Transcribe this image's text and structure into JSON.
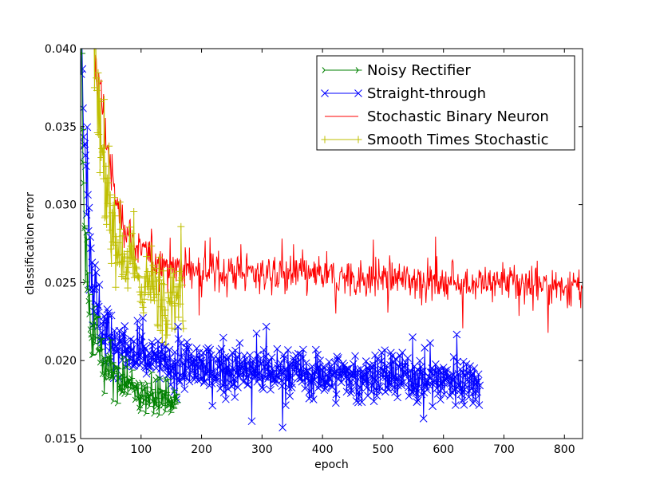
{
  "chart_data": {
    "type": "line",
    "title": "",
    "xlabel": "epoch",
    "ylabel": "classification error",
    "xlim": [
      0,
      830
    ],
    "ylim": [
      0.015,
      0.04
    ],
    "xticks": [
      0,
      100,
      200,
      300,
      400,
      500,
      600,
      700,
      800
    ],
    "yticks": [
      0.015,
      0.02,
      0.025,
      0.03,
      0.035,
      0.04
    ],
    "ytick_labels": [
      "0.015",
      "0.020",
      "0.025",
      "0.030",
      "0.035",
      "0.040"
    ],
    "legend_position": "top-right",
    "series": [
      {
        "name": "Noisy Rectifier",
        "color": "#008000",
        "marker": "tri_right",
        "x": [
          1,
          2,
          4,
          6,
          8,
          10,
          12,
          14,
          16,
          18,
          20,
          25,
          30,
          35,
          40,
          45,
          50,
          55,
          60,
          65,
          70,
          75,
          80,
          85,
          90,
          95,
          100,
          105,
          110,
          115,
          120,
          125,
          130,
          135,
          140,
          145,
          150,
          155,
          160
        ],
        "values": [
          0.04,
          0.036,
          0.032,
          0.03,
          0.028,
          0.026,
          0.025,
          0.024,
          0.023,
          0.0225,
          0.022,
          0.0215,
          0.021,
          0.0205,
          0.02,
          0.0198,
          0.0195,
          0.0192,
          0.019,
          0.0188,
          0.0187,
          0.0185,
          0.0184,
          0.0183,
          0.0182,
          0.0181,
          0.018,
          0.0179,
          0.0178,
          0.0178,
          0.0177,
          0.0177,
          0.0176,
          0.0176,
          0.0175,
          0.0175,
          0.0175,
          0.0175,
          0.0175
        ]
      },
      {
        "name": "Straight-through",
        "color": "#0000ff",
        "marker": "x",
        "x": [
          1,
          5,
          10,
          15,
          20,
          30,
          40,
          50,
          60,
          70,
          80,
          90,
          100,
          120,
          140,
          160,
          180,
          200,
          250,
          300,
          350,
          400,
          450,
          500,
          550,
          600,
          650,
          660
        ],
        "values": [
          0.04,
          0.037,
          0.032,
          0.028,
          0.025,
          0.023,
          0.022,
          0.0215,
          0.021,
          0.0207,
          0.0205,
          0.0203,
          0.0201,
          0.02,
          0.0198,
          0.0197,
          0.0196,
          0.0195,
          0.0194,
          0.0193,
          0.0192,
          0.0191,
          0.019,
          0.019,
          0.0189,
          0.0188,
          0.0188,
          0.0188
        ]
      },
      {
        "name": "Stochastic Binary Neuron",
        "color": "#ff0000",
        "marker": "none",
        "x": [
          20,
          30,
          40,
          50,
          60,
          70,
          80,
          90,
          100,
          120,
          140,
          160,
          180,
          200,
          250,
          300,
          350,
          400,
          450,
          500,
          550,
          600,
          650,
          700,
          750,
          800,
          830
        ],
        "values": [
          0.04,
          0.038,
          0.035,
          0.032,
          0.03,
          0.029,
          0.0282,
          0.0275,
          0.027,
          0.0265,
          0.0262,
          0.026,
          0.0259,
          0.0258,
          0.0257,
          0.0256,
          0.0255,
          0.0254,
          0.0253,
          0.0253,
          0.0252,
          0.0251,
          0.025,
          0.025,
          0.0249,
          0.0248,
          0.0248
        ]
      },
      {
        "name": "Smooth Times Stochastic",
        "color": "#bfbf00",
        "marker": "plus",
        "x": [
          20,
          25,
          30,
          35,
          40,
          45,
          50,
          55,
          60,
          65,
          70,
          75,
          80,
          85,
          90,
          95,
          100,
          110,
          120,
          130,
          140,
          150,
          160,
          170
        ],
        "values": [
          0.04,
          0.037,
          0.035,
          0.033,
          0.031,
          0.03,
          0.029,
          0.0285,
          0.028,
          0.0275,
          0.027,
          0.0265,
          0.026,
          0.0258,
          0.0255,
          0.0253,
          0.025,
          0.0248,
          0.0246,
          0.0245,
          0.0244,
          0.0244,
          0.0243,
          0.0243
        ]
      }
    ]
  }
}
